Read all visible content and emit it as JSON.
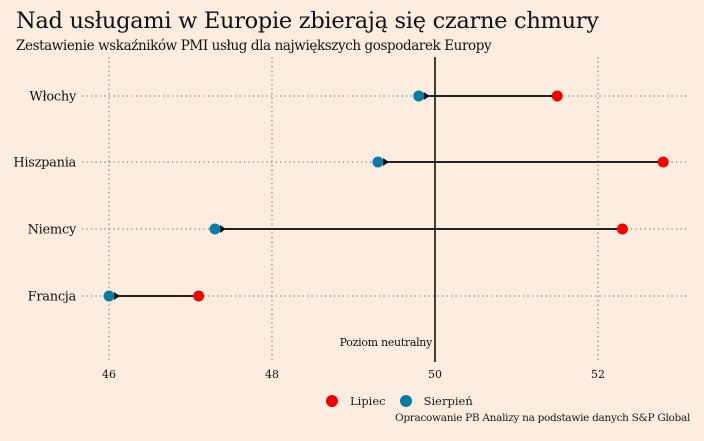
{
  "chart_data": {
    "type": "dumbbell",
    "title": "Nad usługami w Europie zbierają się czarne chmury",
    "subtitle": "Zestawienie wskaźników PMI usług dla największych gospodarek Europy",
    "xlabel": "",
    "ylabel": "",
    "xlim": [
      45.8,
      53.1
    ],
    "x_ticks": [
      46,
      48,
      50,
      52
    ],
    "x_tick_labels": [
      "46",
      "48",
      "50",
      "52"
    ],
    "grid": true,
    "categories": [
      "Włochy",
      "Hiszpania",
      "Niemcy",
      "Francja"
    ],
    "series": [
      {
        "name": "Lipiec",
        "color": "#f20000",
        "values": [
          51.5,
          52.8,
          52.3,
          47.1
        ]
      },
      {
        "name": "Sierpień",
        "color": "#0b7ba4",
        "values": [
          49.8,
          49.3,
          47.3,
          46.0
        ]
      }
    ],
    "reference_line": {
      "value": 50,
      "label": "Poziom neutralny"
    },
    "legend_position": "bottom-center",
    "source": "Opracowanie PB Analizy na podstawie danych S&P Global"
  }
}
